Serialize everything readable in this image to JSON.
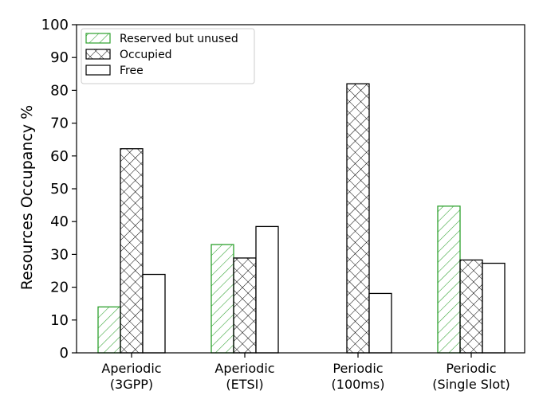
{
  "chart_data": {
    "type": "bar",
    "title": "",
    "xlabel": "",
    "ylabel": "Resources Occupancy %",
    "ylim": [
      0,
      100
    ],
    "yticks": [
      "0",
      "10",
      "20",
      "30",
      "40",
      "50",
      "60",
      "70",
      "80",
      "90",
      "100"
    ],
    "categories": [
      [
        "Aperiodic",
        "(3GPP)"
      ],
      [
        "Aperiodic",
        "(ETSI)"
      ],
      [
        "Periodic",
        "(100ms)"
      ],
      [
        "Periodic",
        "(Single Slot)"
      ]
    ],
    "legend_position": "top-left",
    "series": [
      {
        "name": "Reserved but unused",
        "pattern": "diagonal-hatch",
        "edge_color": "#2ca02c",
        "values": [
          14,
          33,
          0,
          44.7
        ]
      },
      {
        "name": "Occupied",
        "pattern": "cross-hatch",
        "edge_color": "#000000",
        "values": [
          62.2,
          28.9,
          82,
          28.3
        ]
      },
      {
        "name": "Free",
        "pattern": "none",
        "edge_color": "#000000",
        "values": [
          23.9,
          38.5,
          18.1,
          27.3
        ]
      }
    ]
  }
}
